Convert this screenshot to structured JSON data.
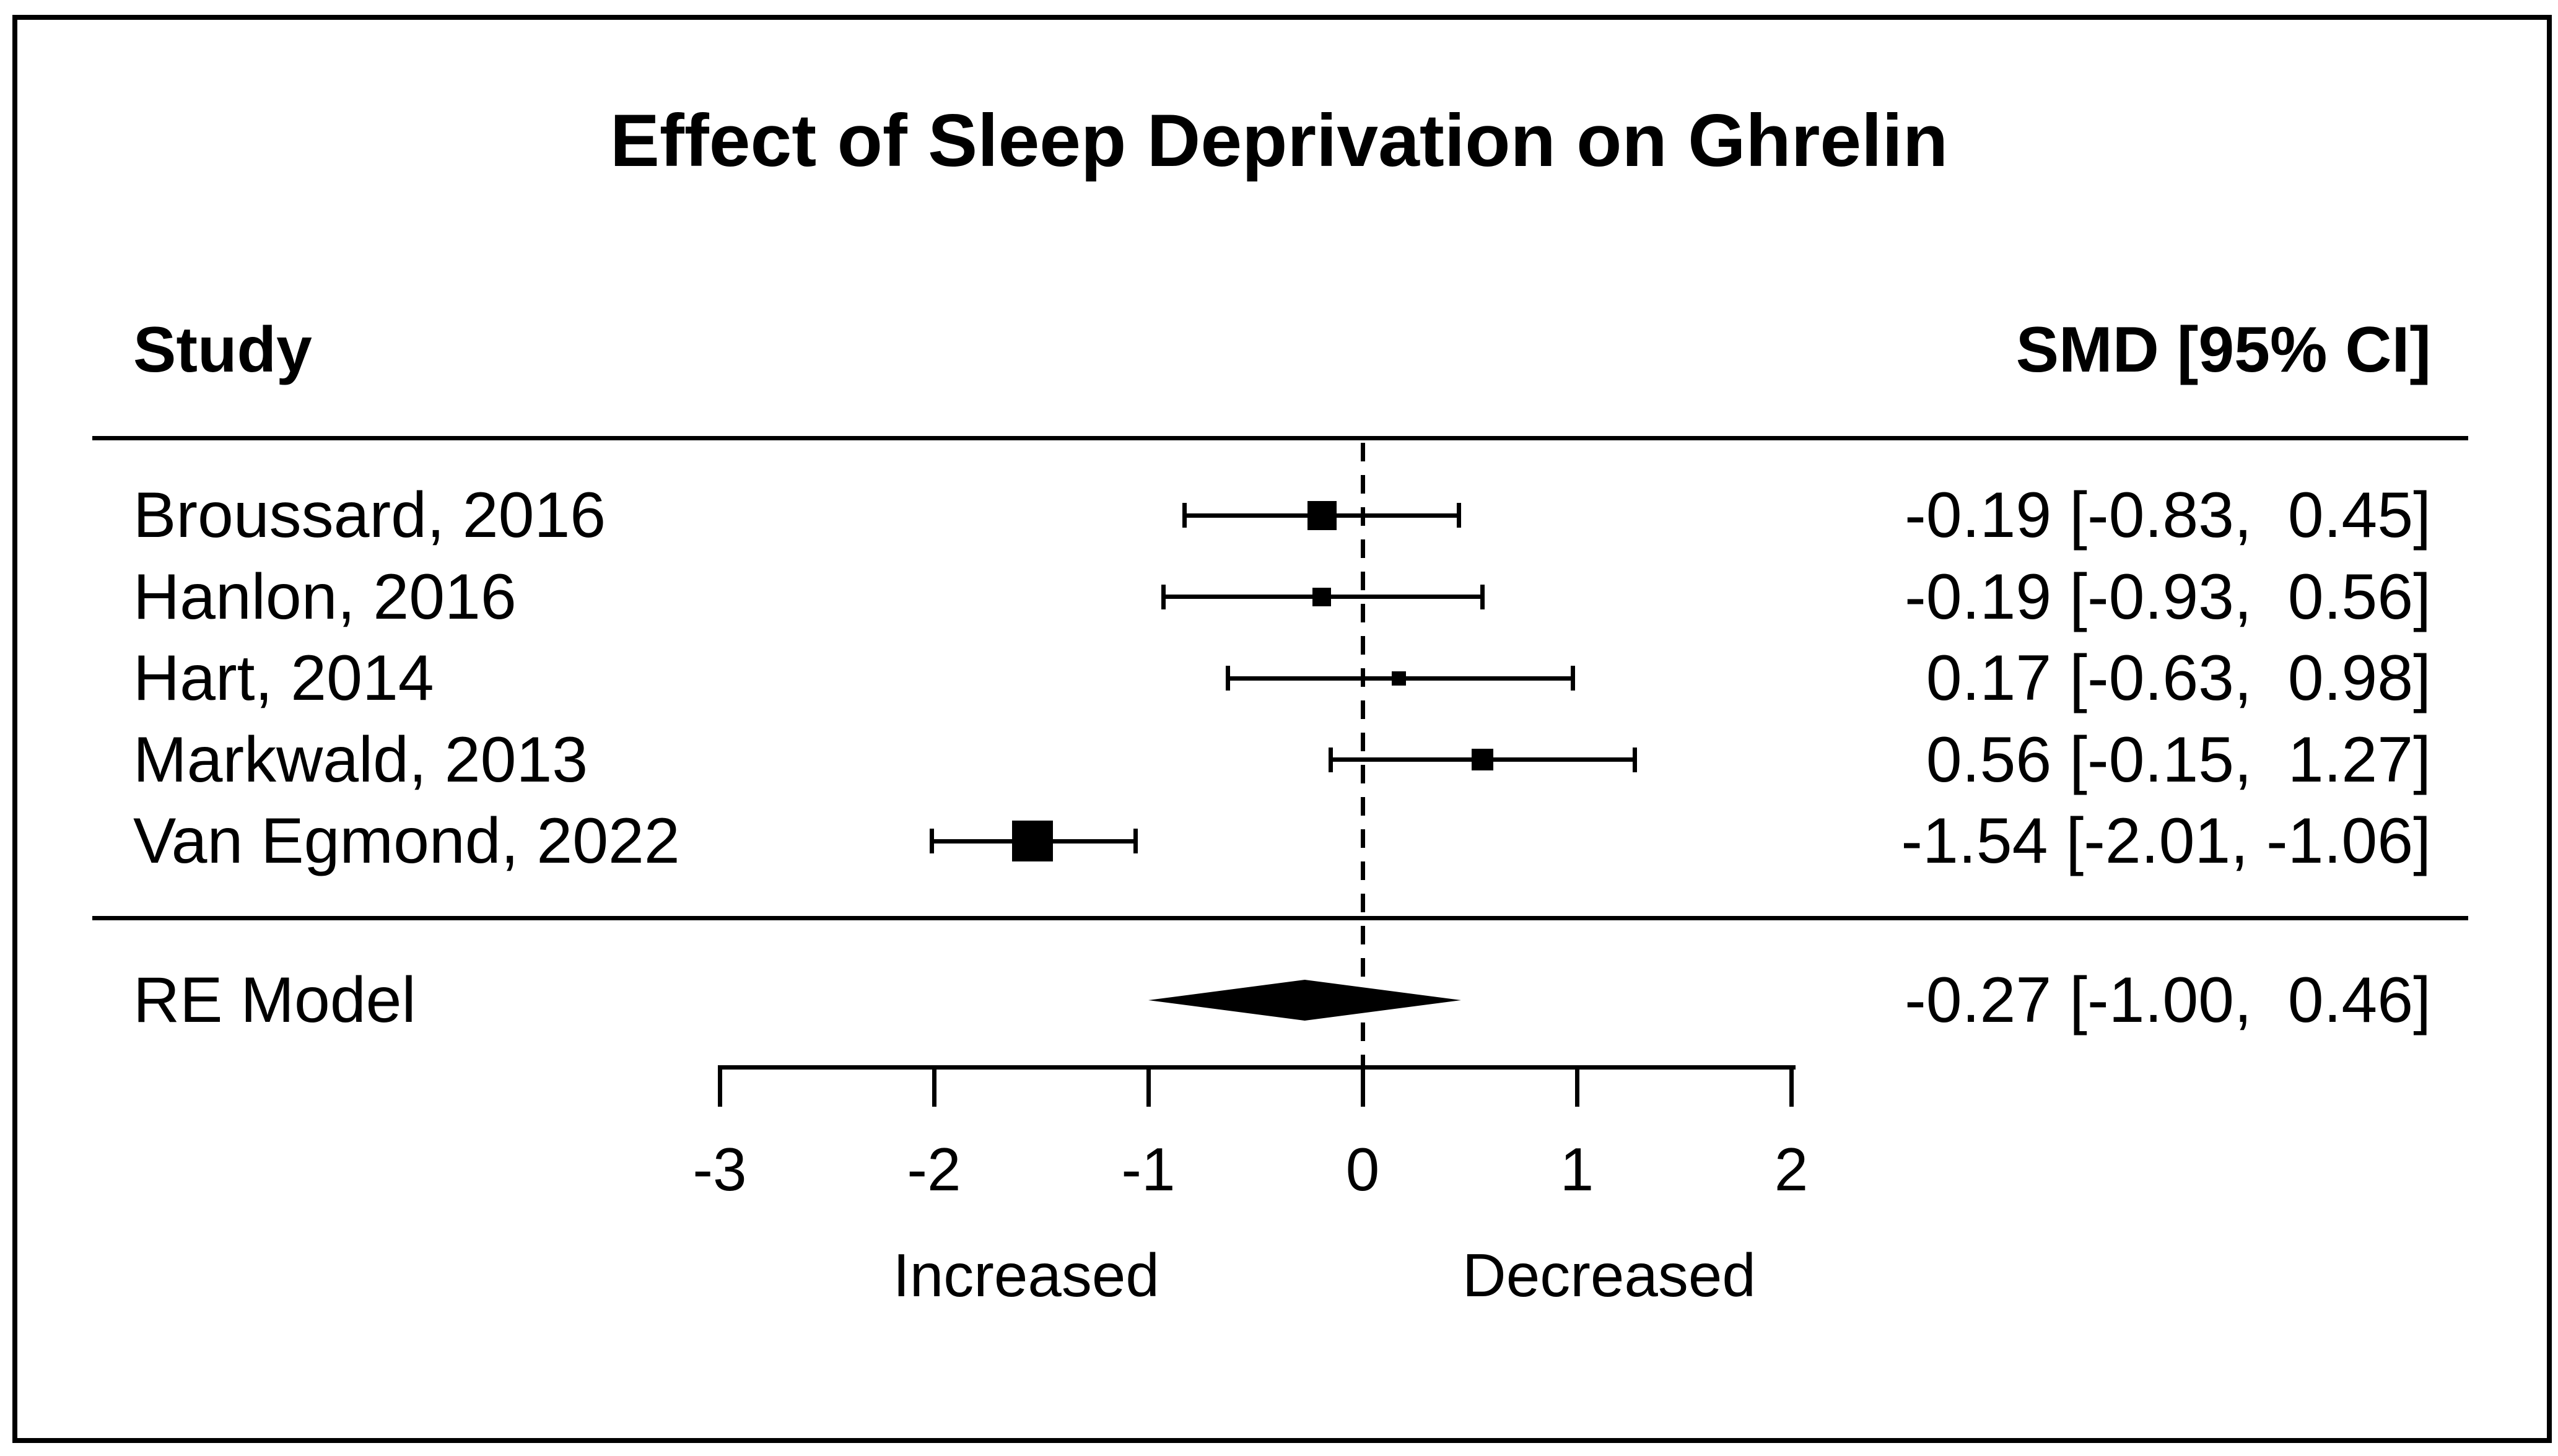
{
  "title": "Effect of Sleep Deprivation on Ghrelin",
  "columns": {
    "study": "Study",
    "smd": "SMD [95% CI]"
  },
  "chart_data": {
    "type": "forest",
    "title": "Effect of Sleep Deprivation on Ghrelin",
    "effect_measure": "SMD",
    "axis": {
      "min": -3,
      "max": 2,
      "reference_line": 0,
      "ticks": [
        -3,
        -2,
        -1,
        0,
        1,
        2
      ],
      "tick_labels": [
        "-3",
        "-2",
        "-1",
        "0",
        "1",
        "2"
      ]
    },
    "direction_labels": {
      "left": {
        "text": "Increased",
        "x": -1.57
      },
      "right": {
        "text": "Decreased",
        "x": 1.15
      }
    },
    "studies": [
      {
        "label": "Broussard, 2016",
        "smd": -0.19,
        "ci_lower": -0.83,
        "ci_upper": 0.45,
        "smd_ci_text": "-0.19 [-0.83,  0.45]",
        "marker_size": 47
      },
      {
        "label": "Hanlon, 2016",
        "smd": -0.19,
        "ci_lower": -0.93,
        "ci_upper": 0.56,
        "smd_ci_text": "-0.19 [-0.93,  0.56]",
        "marker_size": 30
      },
      {
        "label": "Hart, 2014",
        "smd": 0.17,
        "ci_lower": -0.63,
        "ci_upper": 0.98,
        "smd_ci_text": " 0.17 [-0.63,  0.98]",
        "marker_size": 23
      },
      {
        "label": "Markwald, 2013",
        "smd": 0.56,
        "ci_lower": -0.15,
        "ci_upper": 1.27,
        "smd_ci_text": " 0.56 [-0.15,  1.27]",
        "marker_size": 35
      },
      {
        "label": "Van Egmond, 2022",
        "smd": -1.54,
        "ci_lower": -2.01,
        "ci_upper": -1.06,
        "smd_ci_text": "-1.54 [-2.01, -1.06]",
        "marker_size": 66
      }
    ],
    "summary": {
      "label": "RE Model",
      "smd": -0.27,
      "ci_lower": -1.0,
      "ci_upper": 0.46,
      "smd_ci_text": "-0.27 [-1.00,  0.46]"
    }
  }
}
